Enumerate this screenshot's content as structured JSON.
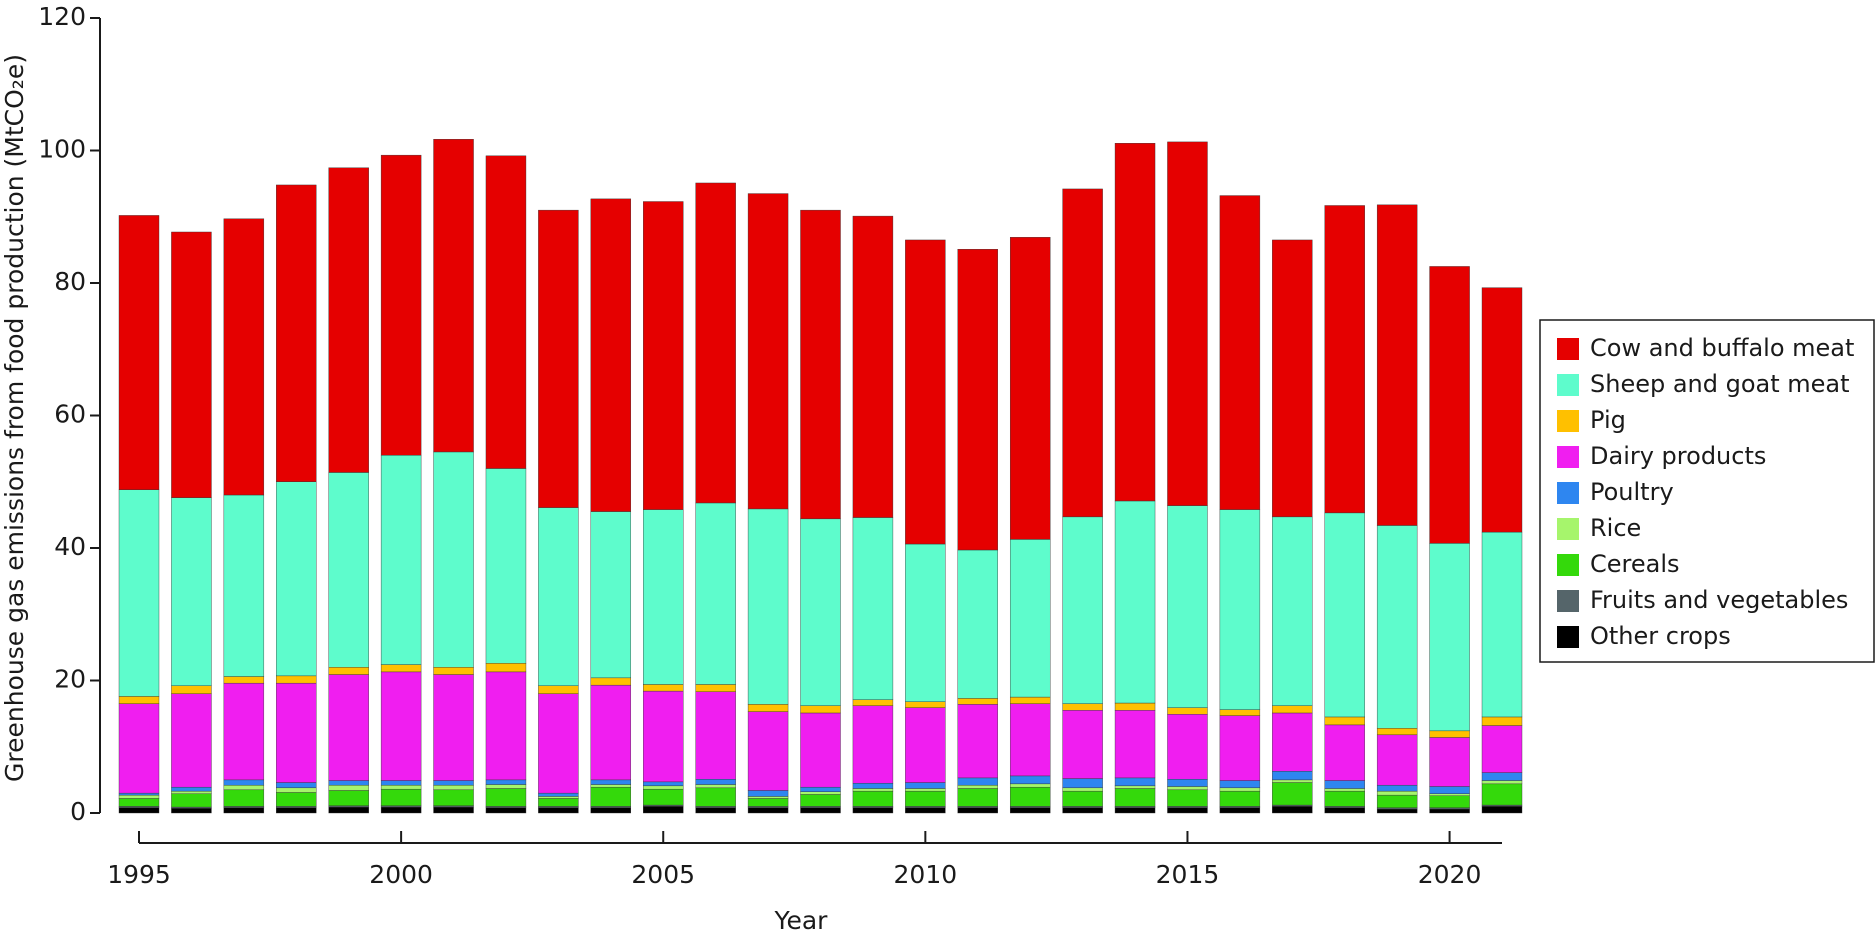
{
  "chart_data": {
    "type": "stacked-bar",
    "x_label": "Year",
    "y_label": "Greenhouse gas emissions from food production (MtCO₂e)",
    "x": [
      1995,
      1996,
      1997,
      1998,
      1999,
      2000,
      2001,
      2002,
      2003,
      2004,
      2005,
      2006,
      2007,
      2008,
      2009,
      2010,
      2011,
      2012,
      2013,
      2014,
      2015,
      2016,
      2017,
      2018,
      2019,
      2020,
      2021
    ],
    "xlim": [
      1995,
      2021
    ],
    "xticks": [
      1995,
      2000,
      2005,
      2010,
      2015,
      2020
    ],
    "ylim": [
      0,
      120
    ],
    "yticks": [
      0,
      20,
      40,
      60,
      80,
      100,
      120
    ],
    "legend_position": "right",
    "series": [
      {
        "name": "Cow and buffalo meat",
        "color": "#e50000",
        "values": [
          41.4,
          40.1,
          41.7,
          44.8,
          46.0,
          45.3,
          47.2,
          47.2,
          44.9,
          47.2,
          46.5,
          48.3,
          47.6,
          46.6,
          45.5,
          45.9,
          45.4,
          45.6,
          49.5,
          54.0,
          54.9,
          47.4,
          41.8,
          46.4,
          48.4,
          41.8,
          36.9
        ]
      },
      {
        "name": "Sheep and goat meat",
        "color": "#5efccc",
        "values": [
          31.2,
          28.4,
          27.4,
          29.3,
          29.4,
          31.6,
          32.5,
          29.4,
          26.9,
          25.1,
          26.4,
          27.4,
          29.5,
          28.2,
          27.5,
          23.8,
          22.4,
          23.8,
          28.2,
          30.5,
          30.5,
          30.2,
          28.5,
          30.8,
          30.6,
          28.3,
          27.9
        ]
      },
      {
        "name": "Pig",
        "color": "#ffc000",
        "values": [
          1.1,
          1.2,
          1.0,
          1.1,
          1.1,
          1.1,
          1.1,
          1.3,
          1.2,
          1.1,
          1.0,
          1.1,
          1.1,
          1.1,
          0.9,
          0.9,
          0.9,
          1.0,
          1.0,
          1.1,
          1.0,
          0.9,
          1.1,
          1.2,
          1.0,
          1.0,
          1.3
        ]
      },
      {
        "name": "Dairy products",
        "color": "#f01ef0",
        "values": [
          13.5,
          14.1,
          14.6,
          15.0,
          16.0,
          16.4,
          16.0,
          16.3,
          15.0,
          14.3,
          13.7,
          13.2,
          11.9,
          11.2,
          11.7,
          11.3,
          11.1,
          10.9,
          10.3,
          10.2,
          9.8,
          9.8,
          8.8,
          8.4,
          7.6,
          7.4,
          7.1
        ]
      },
      {
        "name": "Poultry",
        "color": "#2e86f0",
        "values": [
          0.3,
          0.6,
          0.8,
          0.8,
          0.7,
          0.7,
          0.7,
          0.7,
          0.5,
          0.7,
          0.6,
          0.8,
          0.9,
          0.7,
          0.8,
          0.9,
          1.1,
          1.2,
          1.4,
          1.2,
          1.1,
          1.1,
          1.3,
          1.2,
          0.9,
          1.1,
          1.2
        ]
      },
      {
        "name": "Rice",
        "color": "#a6f56c",
        "values": [
          0.5,
          0.4,
          0.7,
          0.7,
          0.8,
          0.6,
          0.7,
          0.6,
          0.3,
          0.4,
          0.5,
          0.5,
          0.3,
          0.4,
          0.4,
          0.4,
          0.5,
          0.5,
          0.5,
          0.4,
          0.5,
          0.5,
          0.4,
          0.4,
          0.6,
          0.3,
          0.5
        ]
      },
      {
        "name": "Cereals",
        "color": "#34d90b",
        "values": [
          1.2,
          2.0,
          2.5,
          2.1,
          2.3,
          2.5,
          2.4,
          2.7,
          1.2,
          2.9,
          2.4,
          2.8,
          1.2,
          1.8,
          2.3,
          2.3,
          2.7,
          2.9,
          2.3,
          2.7,
          2.5,
          2.3,
          3.4,
          2.3,
          1.9,
          1.8,
          3.2
        ]
      },
      {
        "name": "Fruits and vegetables",
        "color": "#55656a",
        "values": [
          0.2,
          0.2,
          0.2,
          0.2,
          0.2,
          0.2,
          0.2,
          0.2,
          0.2,
          0.2,
          0.2,
          0.2,
          0.2,
          0.2,
          0.2,
          0.2,
          0.2,
          0.2,
          0.2,
          0.2,
          0.2,
          0.2,
          0.2,
          0.2,
          0.2,
          0.2,
          0.2
        ]
      },
      {
        "name": "Other crops",
        "color": "#000000",
        "values": [
          0.8,
          0.7,
          0.8,
          0.8,
          0.9,
          0.9,
          0.9,
          0.8,
          0.8,
          0.8,
          1.0,
          0.8,
          0.8,
          0.8,
          0.8,
          0.8,
          0.8,
          0.8,
          0.8,
          0.8,
          0.8,
          0.8,
          1.0,
          0.8,
          0.6,
          0.6,
          1.0
        ]
      }
    ]
  }
}
